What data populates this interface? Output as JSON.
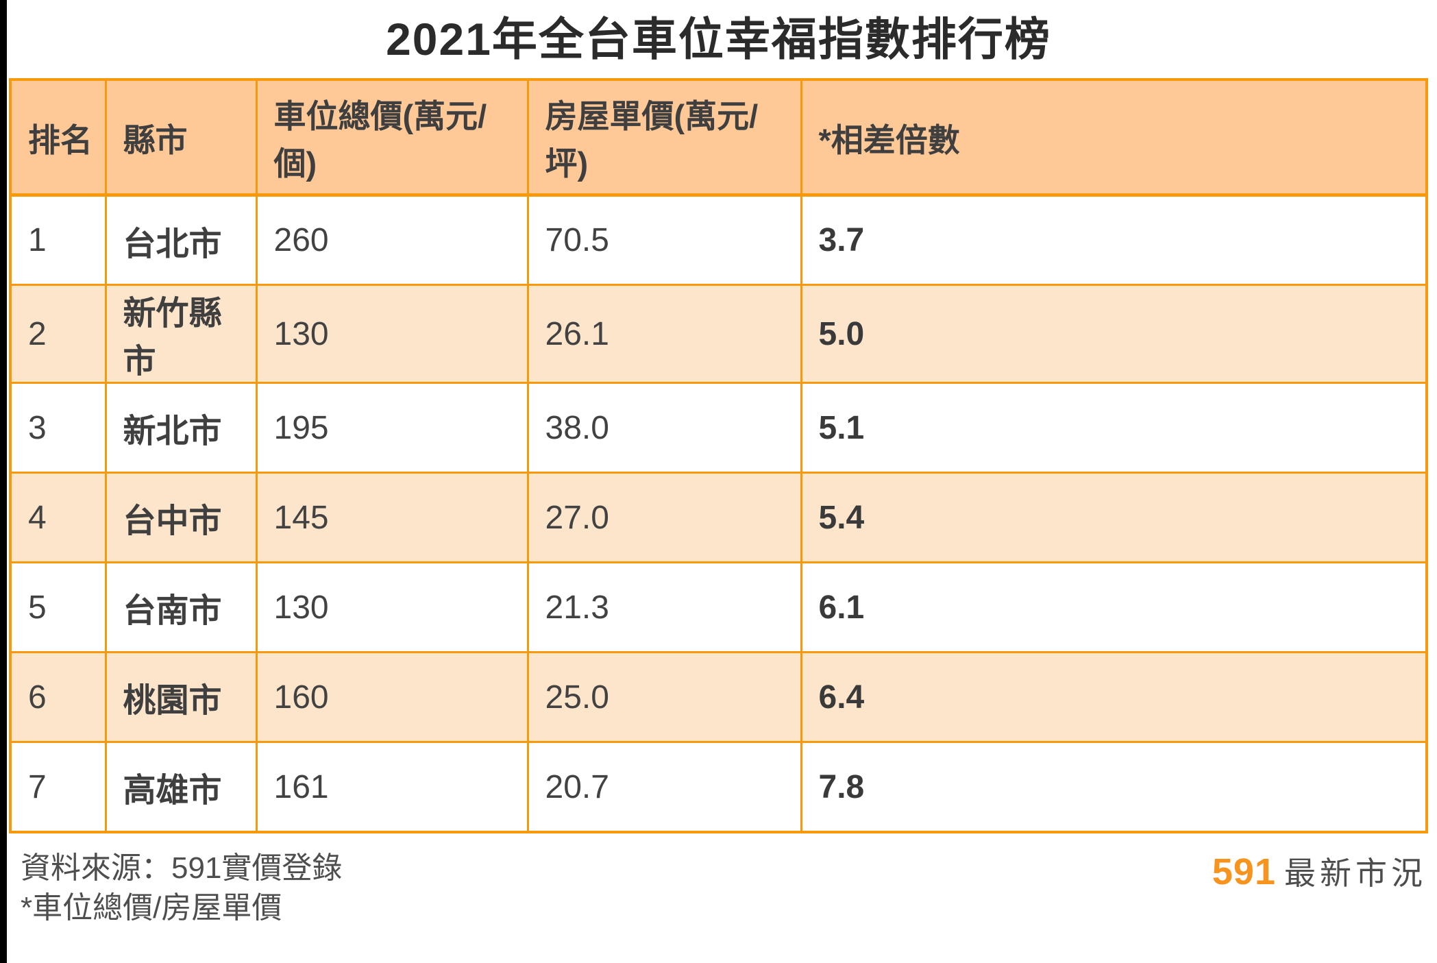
{
  "page": {
    "title": "2021年全台車位幸福指數排行榜"
  },
  "table": {
    "columns": [
      "排名",
      "縣市",
      "車位總價(萬元/個)",
      "房屋單價(萬元/坪)",
      "*相差倍數"
    ],
    "rows": [
      {
        "rank": "1",
        "city": "台北市",
        "parking_total_price": "260",
        "house_unit_price": "70.5",
        "ratio": "3.7"
      },
      {
        "rank": "2",
        "city": "新竹縣市",
        "parking_total_price": "130",
        "house_unit_price": "26.1",
        "ratio": "5.0"
      },
      {
        "rank": "3",
        "city": "新北市",
        "parking_total_price": "195",
        "house_unit_price": "38.0",
        "ratio": "5.1"
      },
      {
        "rank": "4",
        "city": "台中市",
        "parking_total_price": "145",
        "house_unit_price": "27.0",
        "ratio": "5.4"
      },
      {
        "rank": "5",
        "city": "台南市",
        "parking_total_price": "130",
        "house_unit_price": "21.3",
        "ratio": "6.1"
      },
      {
        "rank": "6",
        "city": "桃園市",
        "parking_total_price": "160",
        "house_unit_price": "25.0",
        "ratio": "6.4"
      },
      {
        "rank": "7",
        "city": "高雄市",
        "parking_total_price": "161",
        "house_unit_price": "20.7",
        "ratio": "7.8"
      }
    ]
  },
  "footer": {
    "source": "資料來源：591實價登錄",
    "note": "*車位總價/房屋單價",
    "brand": "591",
    "brand_suffix": "最新市況"
  },
  "colors": {
    "header_bg": "#fec997",
    "row_alt_bg": "#fde5cb",
    "grid_border": "#f8990b",
    "brand_orange": "#f8941d",
    "title_text": "#2b2b2b",
    "body_text": "#424242",
    "footer_text": "#4e4e4e"
  },
  "chart_data": {
    "type": "table",
    "title": "2021年全台車位幸福指數排行榜",
    "columns": [
      "排名",
      "縣市",
      "車位總價(萬元/個)",
      "房屋單價(萬元/坪)",
      "*相差倍數"
    ],
    "rows": [
      [
        1,
        "台北市",
        260,
        70.5,
        3.7
      ],
      [
        2,
        "新竹縣市",
        130,
        26.1,
        5.0
      ],
      [
        3,
        "新北市",
        195,
        38.0,
        5.1
      ],
      [
        4,
        "台中市",
        145,
        27.0,
        5.4
      ],
      [
        5,
        "台南市",
        130,
        21.3,
        6.1
      ],
      [
        6,
        "桃園市",
        160,
        25.0,
        6.4
      ],
      [
        7,
        "高雄市",
        161,
        20.7,
        7.8
      ]
    ],
    "notes": [
      "資料來源：591實價登錄",
      "*相差倍數 = 車位總價/房屋單價"
    ]
  }
}
